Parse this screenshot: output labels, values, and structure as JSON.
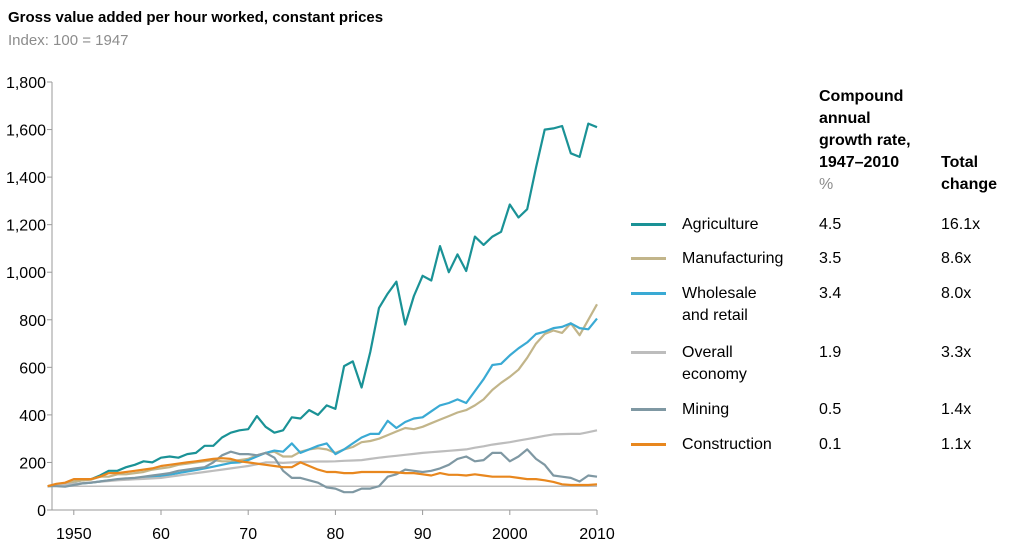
{
  "chart_data": {
    "type": "line",
    "title": "Gross value added per hour worked, constant prices",
    "subtitle": "Index: 100 = 1947",
    "xlabel": "",
    "ylabel": "",
    "xlim": [
      1947.5,
      2010
    ],
    "ylim": [
      0,
      1800
    ],
    "yticks": [
      0,
      200,
      400,
      600,
      800,
      1000,
      1200,
      1400,
      1600,
      1800
    ],
    "ytick_labels": [
      "0",
      "200",
      "400",
      "600",
      "800",
      "1,000",
      "1,200",
      "1,400",
      "1,600",
      "1,800"
    ],
    "xticks": [
      1950,
      1960,
      1970,
      1980,
      1990,
      2000,
      2010
    ],
    "xtick_labels": [
      "1950",
      "60",
      "70",
      "80",
      "90",
      "2000",
      "2010"
    ],
    "reference_line": 100,
    "grid": false,
    "legend_placement": "right",
    "x_start": 1947,
    "x_end": 2010,
    "series": [
      {
        "name": "Agriculture",
        "color": "#1a9296",
        "cagr": "4.5",
        "total": "16.1x",
        "values": [
          100,
          108,
          110,
          120,
          125,
          130,
          145,
          165,
          165,
          180,
          190,
          205,
          200,
          220,
          225,
          220,
          235,
          240,
          270,
          270,
          305,
          325,
          335,
          340,
          395,
          350,
          325,
          335,
          390,
          385,
          420,
          400,
          440,
          425,
          605,
          625,
          515,
          665,
          850,
          910,
          960,
          780,
          900,
          985,
          965,
          1110,
          1000,
          1075,
          1005,
          1150,
          1115,
          1150,
          1170,
          1285,
          1230,
          1265,
          1440,
          1600,
          1605,
          1615,
          1500,
          1485,
          1625,
          1610
        ]
      },
      {
        "name": "Manufacturing",
        "color": "#c2b58a",
        "cagr": "3.5",
        "total": "8.6x",
        "values": [
          100,
          105,
          110,
          120,
          125,
          128,
          140,
          140,
          150,
          150,
          155,
          160,
          170,
          175,
          180,
          190,
          195,
          200,
          205,
          210,
          205,
          205,
          210,
          215,
          230,
          240,
          245,
          225,
          225,
          245,
          255,
          260,
          255,
          240,
          255,
          265,
          285,
          290,
          300,
          315,
          330,
          345,
          340,
          350,
          365,
          380,
          395,
          410,
          420,
          440,
          465,
          505,
          535,
          560,
          590,
          640,
          700,
          740,
          755,
          745,
          785,
          735,
          800,
          865
        ]
      },
      {
        "name": "Wholesale and retail",
        "color": "#3aaad4",
        "cagr": "3.4",
        "total": "8.0x",
        "values": [
          100,
          102,
          105,
          110,
          112,
          115,
          120,
          125,
          128,
          130,
          132,
          135,
          140,
          143,
          148,
          155,
          162,
          168,
          175,
          182,
          190,
          198,
          200,
          210,
          225,
          240,
          250,
          245,
          280,
          240,
          255,
          270,
          280,
          235,
          255,
          280,
          305,
          320,
          320,
          375,
          345,
          370,
          385,
          390,
          415,
          440,
          450,
          465,
          450,
          500,
          550,
          610,
          615,
          650,
          680,
          705,
          740,
          750,
          765,
          770,
          785,
          765,
          760,
          805
        ]
      },
      {
        "name": "Overall economy",
        "color": "#bdbdbd",
        "cagr": "1.9",
        "total": "3.3x",
        "values": [
          100,
          103,
          106,
          110,
          113,
          116,
          119,
          122,
          125,
          127,
          129,
          131,
          133,
          135,
          140,
          145,
          150,
          155,
          160,
          165,
          170,
          175,
          180,
          185,
          192,
          200,
          200,
          198,
          200,
          202,
          203,
          204,
          204,
          205,
          207,
          208,
          210,
          215,
          220,
          224,
          228,
          232,
          236,
          240,
          243,
          246,
          249,
          252,
          255,
          262,
          268,
          275,
          280,
          285,
          292,
          298,
          305,
          312,
          318,
          319,
          320,
          320,
          327,
          335
        ]
      },
      {
        "name": "Mining",
        "color": "#7f98a3",
        "cagr": "0.5",
        "total": "1.4x",
        "values": [
          100,
          100,
          98,
          105,
          112,
          115,
          120,
          125,
          130,
          133,
          135,
          140,
          145,
          150,
          155,
          165,
          170,
          175,
          180,
          200,
          230,
          245,
          235,
          235,
          230,
          240,
          220,
          165,
          135,
          135,
          125,
          115,
          95,
          90,
          75,
          75,
          90,
          90,
          100,
          140,
          150,
          170,
          165,
          160,
          165,
          175,
          190,
          215,
          225,
          205,
          210,
          240,
          240,
          205,
          225,
          255,
          215,
          190,
          145,
          140,
          135,
          120,
          145,
          140
        ]
      },
      {
        "name": "Construction",
        "color": "#e8871e",
        "cagr": "0.1",
        "total": "1.1x",
        "values": [
          100,
          110,
          115,
          130,
          130,
          130,
          140,
          155,
          155,
          160,
          165,
          170,
          175,
          185,
          190,
          195,
          200,
          205,
          210,
          215,
          218,
          215,
          205,
          200,
          195,
          190,
          185,
          180,
          180,
          200,
          185,
          170,
          160,
          160,
          155,
          155,
          160,
          160,
          160,
          160,
          158,
          155,
          155,
          150,
          145,
          155,
          148,
          148,
          145,
          150,
          145,
          140,
          140,
          140,
          135,
          130,
          130,
          125,
          118,
          108,
          105,
          105,
          105,
          108
        ]
      }
    ]
  },
  "legend": {
    "cagr_header": [
      "Compound",
      "annual",
      "growth rate,",
      "1947–2010"
    ],
    "cagr_unit": "%",
    "total_header": [
      "Total",
      "change"
    ],
    "labels": [
      [
        "Agriculture"
      ],
      [
        "Manufacturing"
      ],
      [
        "Wholesale",
        "and retail"
      ],
      [
        "Overall",
        "economy"
      ],
      [
        "Mining"
      ],
      [
        "Construction"
      ]
    ]
  }
}
